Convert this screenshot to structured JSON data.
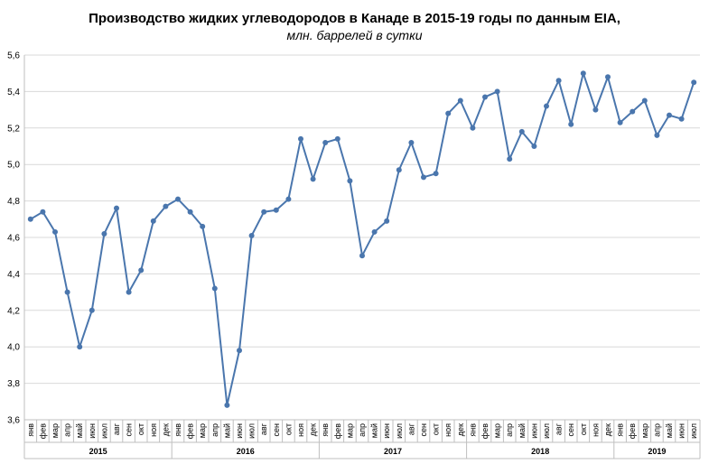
{
  "chart_data": {
    "type": "line",
    "title": "Производство  жидких углеводородов  в Канаде в 2015-19 годы по данным  EIA,",
    "subtitle": "млн. баррелей в сутки",
    "xlabel": "",
    "ylabel": "",
    "ylim": [
      3.6,
      5.6
    ],
    "yticks": [
      "3,6",
      "3,8",
      "4,0",
      "4,2",
      "4,4",
      "4,6",
      "4,8",
      "5,0",
      "5,2",
      "5,4",
      "5,6"
    ],
    "grid": true,
    "legend": "none",
    "line_color": "#4a76ad",
    "years": [
      {
        "label": "2015",
        "months": 12
      },
      {
        "label": "2016",
        "months": 12
      },
      {
        "label": "2017",
        "months": 12
      },
      {
        "label": "2018",
        "months": 12
      },
      {
        "label": "2019",
        "months": 7
      }
    ],
    "categories": [
      "янв",
      "фев",
      "мар",
      "апр",
      "май",
      "июн",
      "июл",
      "авг",
      "сен",
      "окт",
      "ноя",
      "дек",
      "янв",
      "фев",
      "мар",
      "апр",
      "май",
      "июн",
      "июл",
      "авг",
      "сен",
      "окт",
      "ноя",
      "дек",
      "янв",
      "фев",
      "мар",
      "апр",
      "май",
      "июн",
      "июл",
      "авг",
      "сен",
      "окт",
      "ноя",
      "дек",
      "янв",
      "фев",
      "мар",
      "апр",
      "май",
      "июн",
      "июл",
      "авг",
      "сен",
      "окт",
      "ноя",
      "дек",
      "янв",
      "фев",
      "мар",
      "апр",
      "май",
      "июн",
      "июл"
    ],
    "values": [
      4.7,
      4.74,
      4.63,
      4.3,
      4.0,
      4.2,
      4.62,
      4.76,
      4.3,
      4.42,
      4.69,
      4.77,
      4.81,
      4.74,
      4.66,
      4.32,
      3.68,
      3.98,
      4.61,
      4.74,
      4.75,
      4.81,
      5.14,
      4.92,
      5.12,
      5.14,
      4.91,
      4.5,
      4.63,
      4.69,
      4.97,
      5.12,
      4.93,
      4.95,
      5.28,
      5.35,
      5.2,
      5.37,
      5.4,
      5.03,
      5.18,
      5.1,
      5.32,
      5.46,
      5.22,
      5.5,
      5.3,
      5.48,
      5.23,
      5.29,
      5.35,
      5.16,
      5.27,
      5.25,
      5.45
    ]
  }
}
